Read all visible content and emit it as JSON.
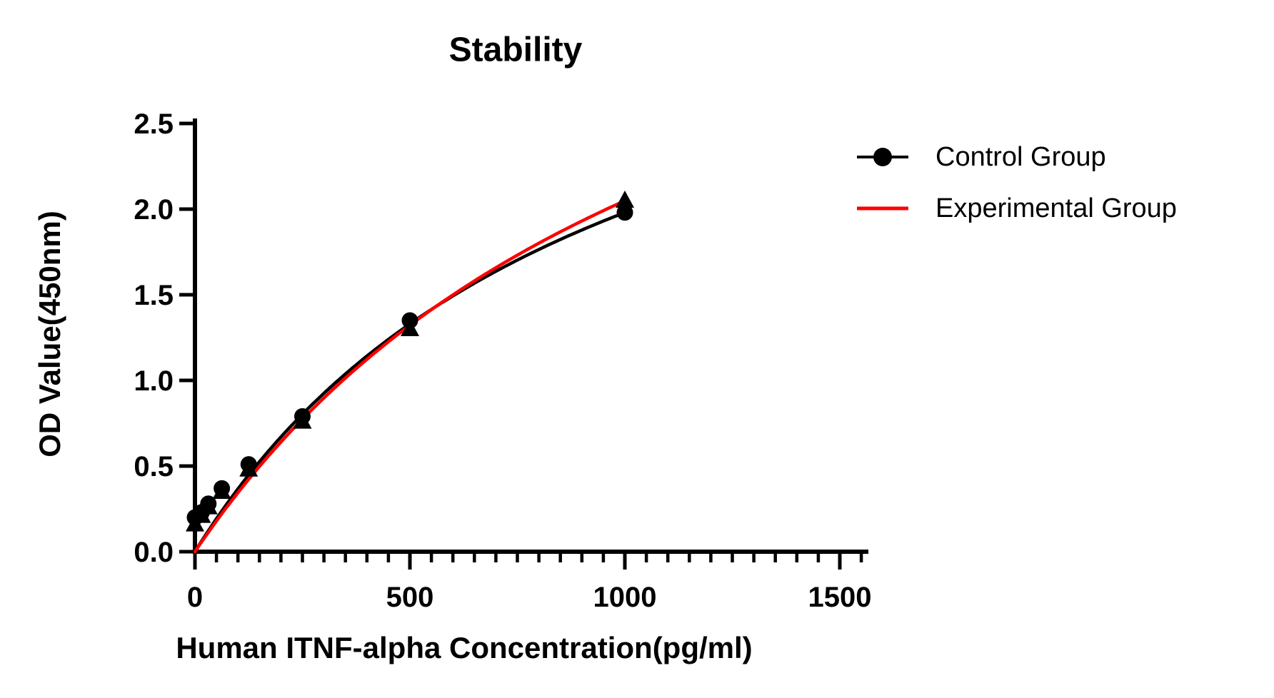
{
  "title": "Stability",
  "axes": {
    "x": {
      "label": "Human ITNF-alpha Concentration(pg/ml)",
      "min": 0,
      "max": 1565,
      "major_ticks": [
        0,
        500,
        1000,
        1500
      ],
      "major_tick_labels": [
        "0",
        "500",
        "1000",
        "1500"
      ],
      "minor_tick_step": 50,
      "minor_tick_max": 1550
    },
    "y": {
      "label": "OD Value(450nm)",
      "min": 0,
      "max": 2.5,
      "major_ticks": [
        0.0,
        0.5,
        1.0,
        1.5,
        2.0,
        2.5
      ],
      "major_tick_labels": [
        "0.0",
        "0.5",
        "1.0",
        "1.5",
        "2.0",
        "2.5"
      ]
    }
  },
  "legend": {
    "entries": [
      {
        "label": "Control Group",
        "marker": "circle-on-line",
        "color": "#000000"
      },
      {
        "label": "Experimental Group",
        "marker": "line",
        "color": "#FF0000"
      }
    ]
  },
  "colors": {
    "axis": "#000000",
    "control": "#000000",
    "experimental_curve": "#FF0000",
    "experimental_marker": "#000000",
    "background": "#FFFFFF"
  },
  "chart_data": {
    "type": "scatter",
    "title": "Stability",
    "xlabel": "Human ITNF-alpha Concentration(pg/ml)",
    "ylabel": "OD Value(450nm)",
    "xlim": [
      0,
      1565
    ],
    "ylim": [
      0,
      2.5
    ],
    "grid": false,
    "legend_position": "right",
    "x": [
      0,
      15.6,
      31.2,
      62.5,
      125,
      250,
      500,
      1000
    ],
    "series": [
      {
        "name": "Control Group",
        "marker": "circle",
        "marker_color": "#000000",
        "curve_color": "#000000",
        "values": [
          0.2,
          0.23,
          0.28,
          0.37,
          0.51,
          0.79,
          1.35,
          1.98
        ],
        "fit": {
          "type": "michaelis-menten",
          "vmax": 3.875,
          "k": 957,
          "x_start": 0,
          "x_end": 1000
        }
      },
      {
        "name": "Experimental Group",
        "marker": "triangle",
        "marker_color": "#000000",
        "curve_color": "#FF0000",
        "values": [
          0.16,
          0.21,
          0.26,
          0.35,
          0.48,
          0.76,
          1.3,
          2.05
        ],
        "fit": {
          "type": "michaelis-menten",
          "vmax": 4.55,
          "k": 1221,
          "x_start": 0,
          "x_end": 1000
        }
      }
    ]
  }
}
